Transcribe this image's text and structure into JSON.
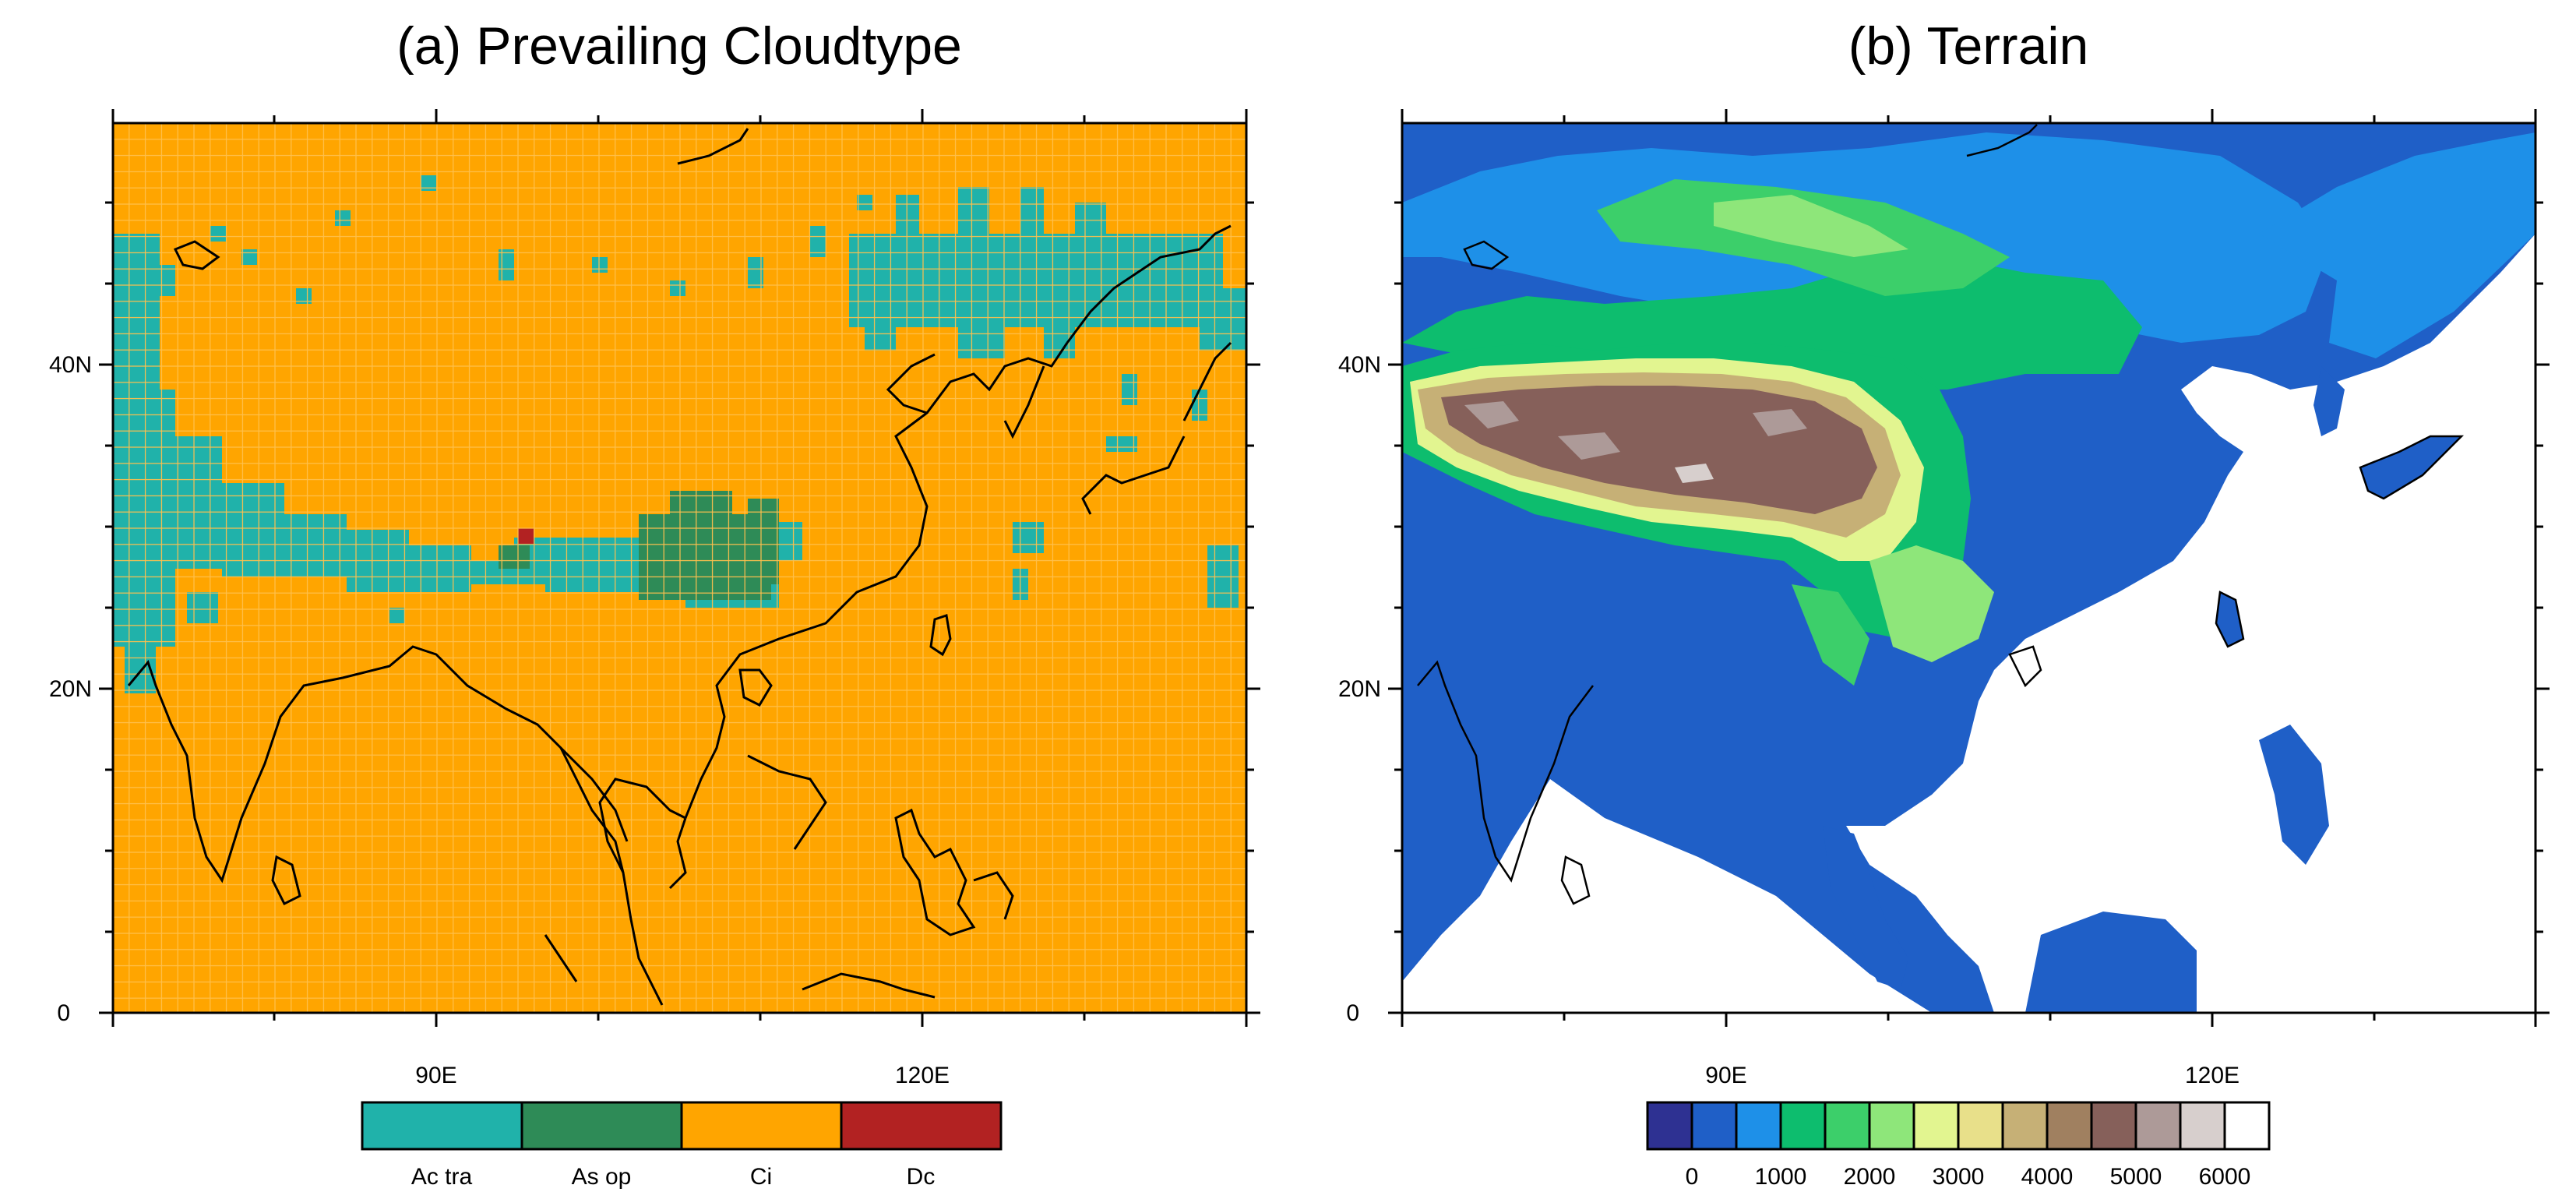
{
  "panel_a": {
    "title": "(a) Prevailing Cloudtype",
    "lat_ticks": [
      "40N",
      "20N",
      "0"
    ],
    "lon_ticks": [
      "90E",
      "120E"
    ],
    "legend": [
      {
        "label": "Ac tra",
        "color": "#20b2aa"
      },
      {
        "label": "As op",
        "color": "#2e8b57"
      },
      {
        "label": "Ci",
        "color": "#ffa500"
      },
      {
        "label": "Dc",
        "color": "#b22222"
      }
    ]
  },
  "panel_b": {
    "title": "(b) Terrain",
    "lat_ticks": [
      "40N",
      "20N",
      "0"
    ],
    "lon_ticks": [
      "90E",
      "120E"
    ],
    "colorbar_colors": [
      "#2e3192",
      "#1f5fc7",
      "#1e90e8",
      "#0dbd6e",
      "#3ccf6a",
      "#8ee67a",
      "#e2f590",
      "#e8e08a",
      "#c6b076",
      "#a08060",
      "#86605a",
      "#ad9a98",
      "#d7cfcd",
      "#ffffff"
    ],
    "colorbar_labels": [
      "0",
      "1000",
      "2000",
      "3000",
      "4000",
      "5000",
      "6000"
    ]
  },
  "map_extent": {
    "lon_min": 70,
    "lon_max": 140,
    "lat_min": 0,
    "lat_max": 55
  },
  "colors": {
    "ocean_a": "#ffa500",
    "grid_a": "#ffc04d",
    "ocean_b": "#ffffff",
    "land_low": "#1f5fc7",
    "coast": "#000000"
  }
}
